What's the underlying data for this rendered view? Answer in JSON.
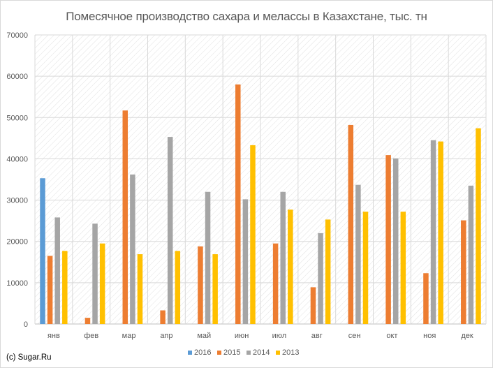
{
  "chart_data": {
    "type": "bar",
    "title": "Помесячное производство сахара и мелассы в Казахстане, тыс. тн",
    "xlabel": "",
    "ylabel": "",
    "ylim": [
      0,
      70000
    ],
    "yticks": [
      0,
      10000,
      20000,
      30000,
      40000,
      50000,
      60000,
      70000
    ],
    "categories": [
      "янв",
      "фев",
      "мар",
      "апр",
      "май",
      "июн",
      "июл",
      "авг",
      "сен",
      "окт",
      "ноя",
      "дек"
    ],
    "series": [
      {
        "name": "2016",
        "color": "#5B9BD5",
        "values": [
          35300,
          null,
          null,
          null,
          null,
          null,
          null,
          null,
          null,
          null,
          null,
          null
        ]
      },
      {
        "name": "2015",
        "color": "#ED7D31",
        "values": [
          16500,
          1500,
          51700,
          3300,
          18800,
          58000,
          19500,
          8900,
          48200,
          40900,
          12300,
          25100
        ]
      },
      {
        "name": "2014",
        "color": "#A5A5A5",
        "values": [
          25800,
          24300,
          36200,
          45300,
          32000,
          30200,
          32000,
          22000,
          33700,
          40100,
          44500,
          33500
        ]
      },
      {
        "name": "2013",
        "color": "#FFC000",
        "values": [
          17700,
          19500,
          16900,
          17700,
          16900,
          43300,
          27700,
          25300,
          27200,
          27200,
          44200,
          47400
        ]
      }
    ],
    "grid": true,
    "legend_position": "bottom"
  },
  "credit": "(c) Sugar.Ru"
}
